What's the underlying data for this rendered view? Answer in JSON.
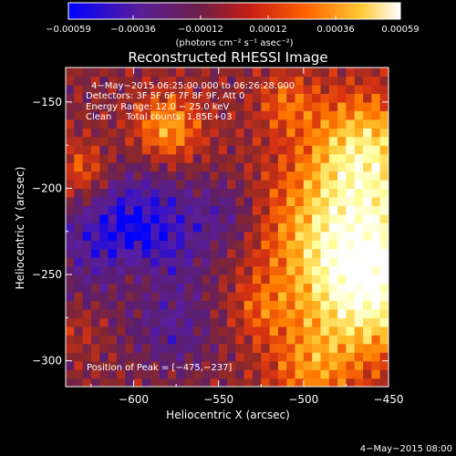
{
  "chart_data": {
    "type": "heatmap",
    "title": "Reconstructed RHESSI Image",
    "xlabel": "Heliocentric X (arcsec)",
    "ylabel": "Heliocentric Y (arcsec)",
    "xlim": [
      -640,
      -450
    ],
    "ylim": [
      -315,
      -130
    ],
    "x_ticks": [
      -600,
      -550,
      -500,
      -450
    ],
    "x_tick_labels": [
      "−600",
      "−550",
      "−500",
      "−450"
    ],
    "y_ticks": [
      -150,
      -200,
      -250,
      -300
    ],
    "y_tick_labels": [
      "−150",
      "−200",
      "−250",
      "−300"
    ],
    "colorbar": {
      "range": [
        -0.00059,
        0.00059
      ],
      "ticks": [
        -0.00059,
        -0.00036,
        -0.00012,
        0.00012,
        0.00036,
        0.00059
      ],
      "tick_labels": [
        "−0.00059",
        "−0.00036",
        "−0.00012",
        "0.00012",
        "0.00036",
        "0.00059"
      ],
      "unit_label": "(photons cm⁻² s⁻¹ asec⁻²)"
    },
    "annotations": [
      "4−May−2015 06:25:00.000 to 06:26:28.000",
      "Detectors: 3F 5F 6F 7F 8F 9F, Att 0",
      "Energy Range: 12.0 − 25.0 keV",
      "Clean     Total counts: 1.85E+03"
    ],
    "peak_label": "Position of Peak = [−475,−237]",
    "peak": [
      -475,
      -237
    ],
    "footer": "4−May−2015 08:00"
  },
  "colors": {
    "colormap": [
      "#0000ff",
      "#5a1ea0",
      "#5a1e6e",
      "#8c2828",
      "#d73212",
      "#ff7800",
      "#ffbe28",
      "#ffff96",
      "#ffffff"
    ]
  }
}
